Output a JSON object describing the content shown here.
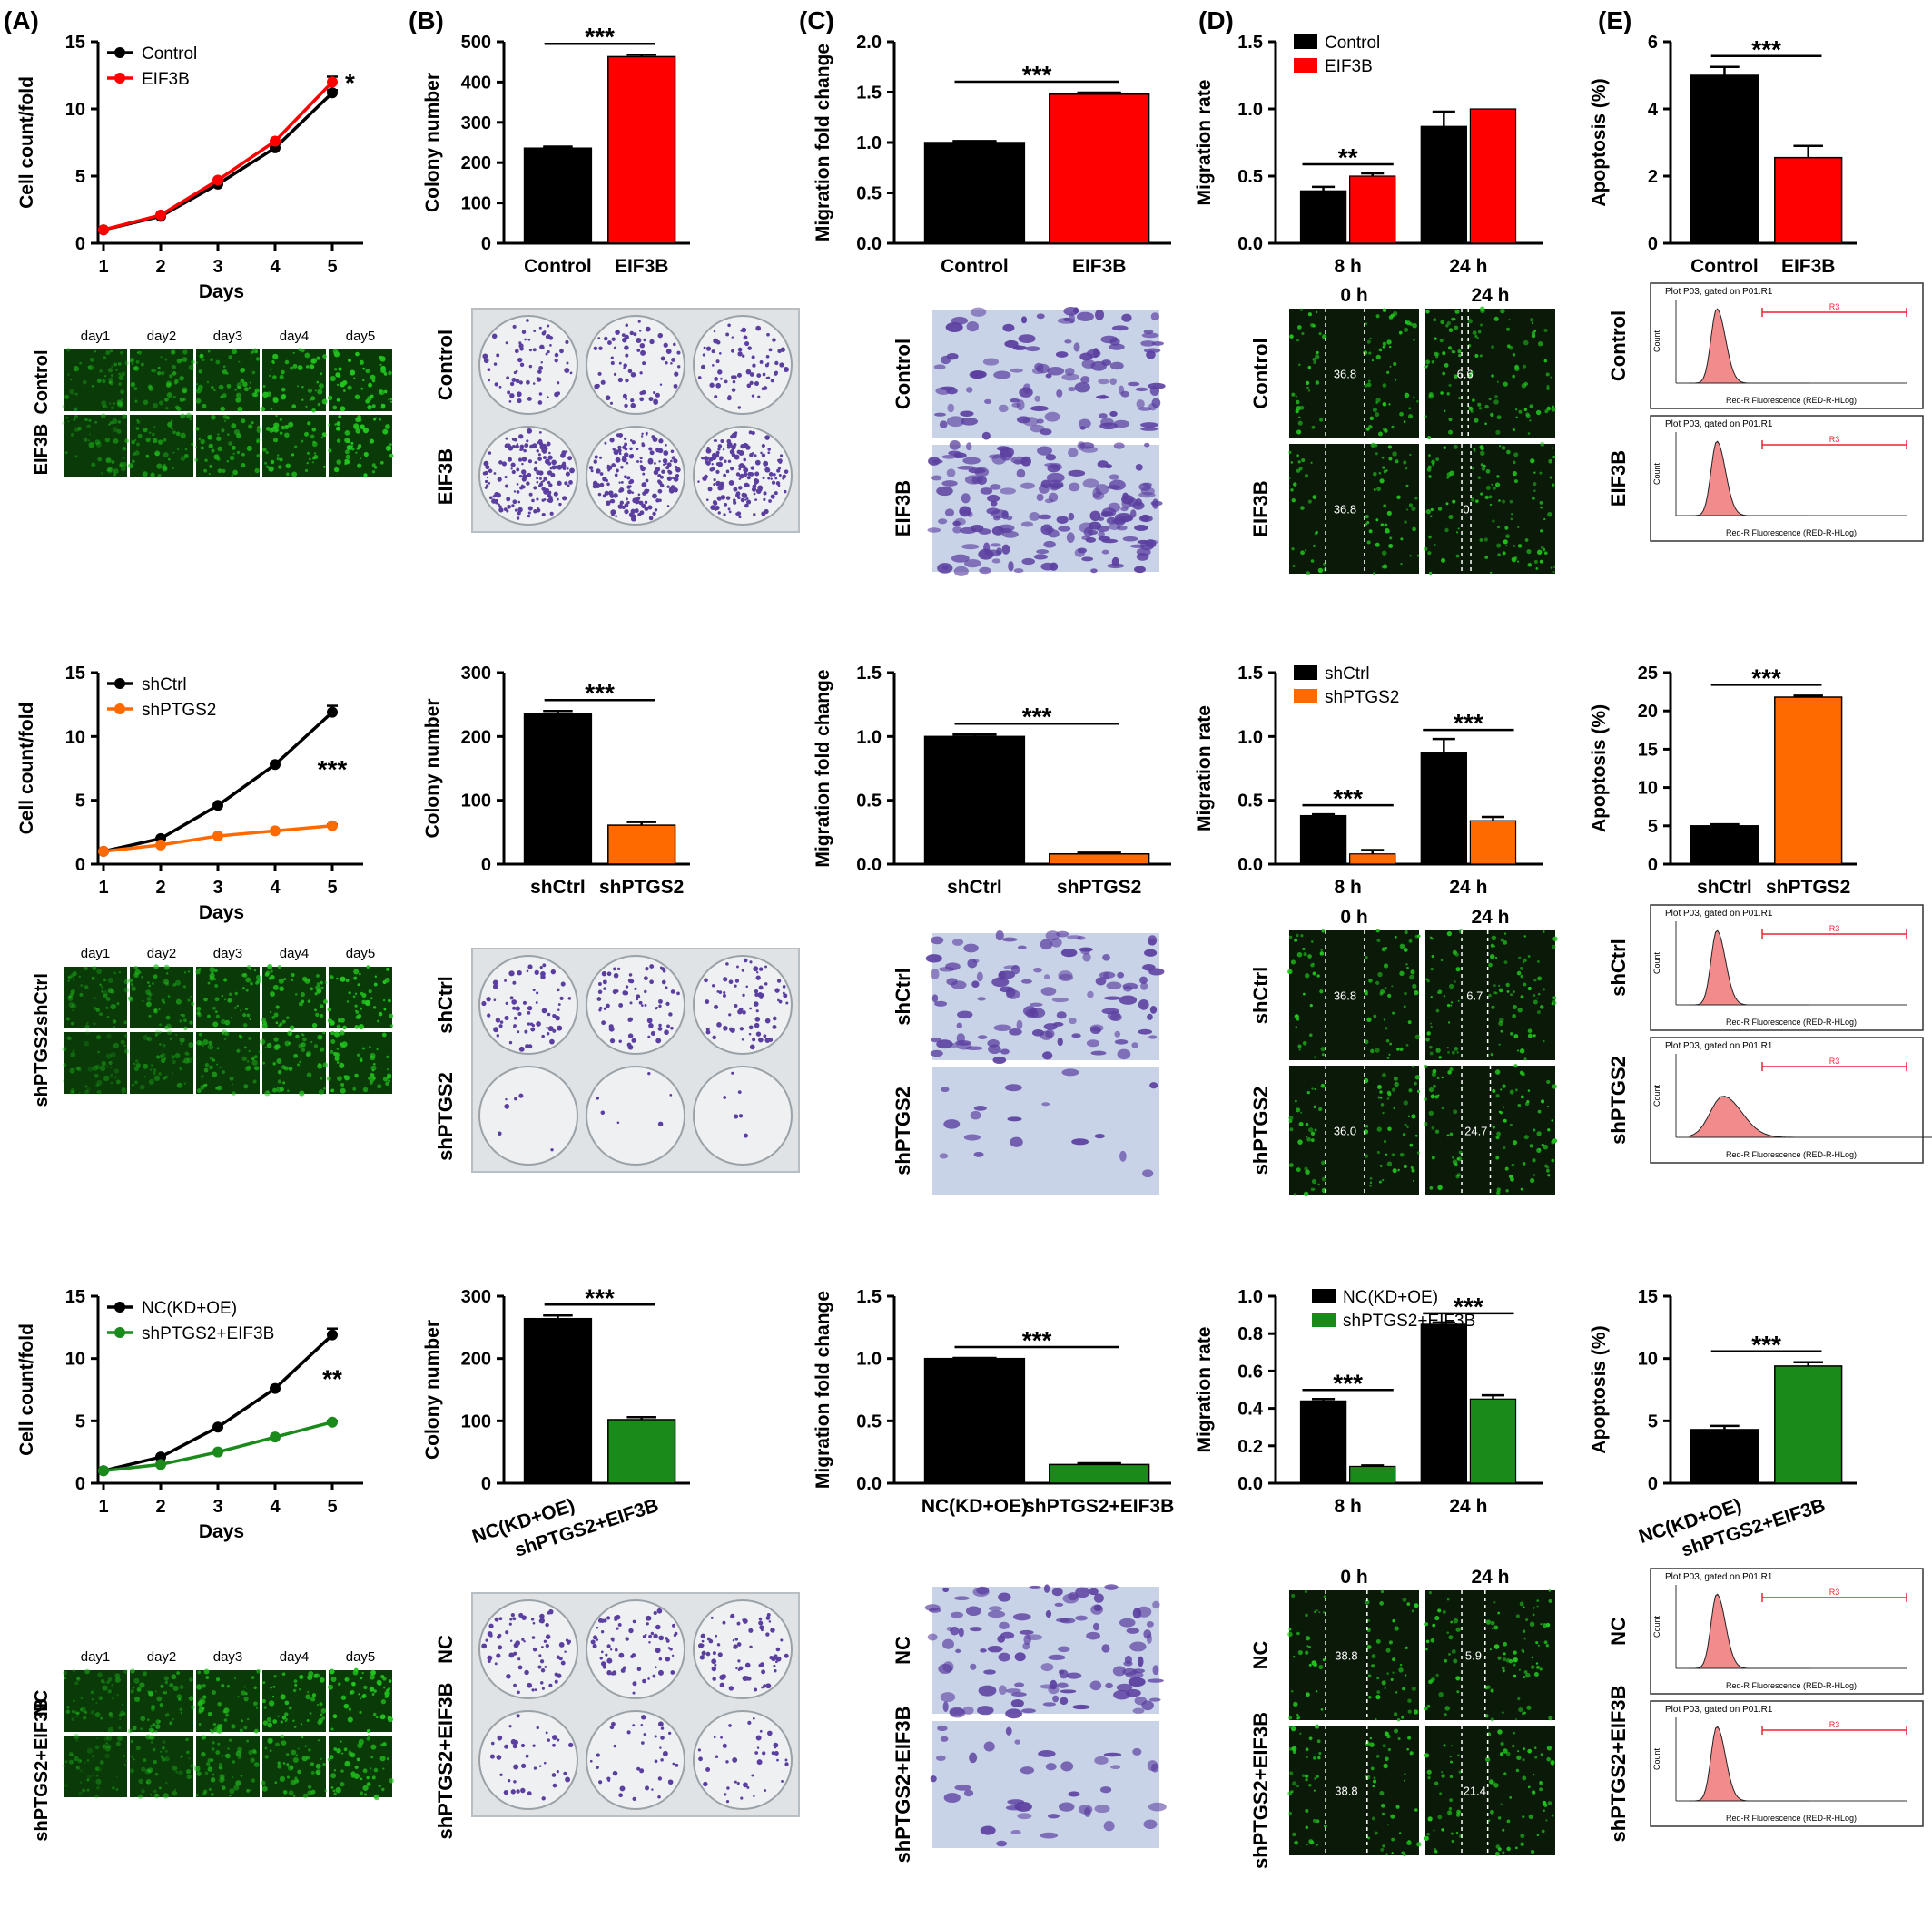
{
  "panel_letters": [
    "(A)",
    "(B)",
    "(C)",
    "(D)",
    "(E)"
  ],
  "rows": [
    {
      "growth": {
        "ylabel": "Cell count/fold",
        "xlabel": "Days",
        "xticks": [
          "1",
          "2",
          "3",
          "4",
          "5"
        ],
        "yticks": [
          "0",
          "5",
          "10",
          "15"
        ],
        "legend": [
          "Control",
          "EIF3B"
        ],
        "sig": "*"
      },
      "growth_images": {
        "day_labels": [
          "day1",
          "day2",
          "day3",
          "day4",
          "day5"
        ],
        "row_labels": [
          "EIF3B",
          "Control"
        ],
        "image_rows": 2
      },
      "colony": {
        "ylabel": "Colony number",
        "yticks": [
          "0",
          "100",
          "200",
          "300",
          "400",
          "500"
        ],
        "categories": [
          "Control",
          "EIF3B"
        ],
        "sig": "***"
      },
      "colony_images": {
        "row_labels": [
          "Control",
          "EIF3B"
        ]
      },
      "migration_fold": {
        "ylabel": "Migration fold change",
        "yticks": [
          "0.0",
          "0.5",
          "1.0",
          "1.5",
          "2.0"
        ],
        "categories": [
          "Control",
          "EIF3B"
        ],
        "sig": "***"
      },
      "transwell_images": {
        "row_labels": [
          "Control",
          "EIF3B"
        ]
      },
      "migration_rate": {
        "ylabel": "Migration rate",
        "yticks": [
          "0.0",
          "0.5",
          "1.0",
          "1.5"
        ],
        "categories": [
          "8 h",
          "24 h"
        ],
        "legend": [
          "Control",
          "EIF3B"
        ],
        "sig": [
          "**",
          ""
        ]
      },
      "wound_images": {
        "time_labels": [
          "0 h",
          "24 h"
        ],
        "row_labels": [
          "Control",
          "EIF3B"
        ],
        "gap_values": [
          [
            "36.8",
            "6.6"
          ],
          [
            "36.8",
            "0"
          ]
        ]
      },
      "apoptosis": {
        "ylabel": "Apoptosis (%)",
        "yticks": [
          "0",
          "2",
          "4",
          "6"
        ],
        "categories": [
          "Control",
          "EIF3B"
        ],
        "sig": "***"
      },
      "flow_images": {
        "row_labels": [
          "Control",
          "EIF3B"
        ]
      }
    },
    {
      "growth": {
        "ylabel": "Cell count/fold",
        "xlabel": "Days",
        "xticks": [
          "1",
          "2",
          "3",
          "4",
          "5"
        ],
        "yticks": [
          "0",
          "5",
          "10",
          "15"
        ],
        "legend": [
          "shCtrl",
          "shPTGS2"
        ],
        "sig": "***"
      },
      "growth_images": {
        "day_labels": [
          "day1",
          "day2",
          "day3",
          "day4",
          "day5"
        ],
        "row_labels": [
          "shPTGS2",
          "shCtrl"
        ],
        "image_rows": 2
      },
      "colony": {
        "ylabel": "Colony number",
        "yticks": [
          "0",
          "100",
          "200",
          "300"
        ],
        "categories": [
          "shCtrl",
          "shPTGS2"
        ],
        "sig": "***"
      },
      "colony_images": {
        "row_labels": [
          "shCtrl",
          "shPTGS2"
        ]
      },
      "migration_fold": {
        "ylabel": "Migration fold change",
        "yticks": [
          "0.0",
          "0.5",
          "1.0",
          "1.5"
        ],
        "categories": [
          "shCtrl",
          "shPTGS2"
        ],
        "sig": "***"
      },
      "transwell_images": {
        "row_labels": [
          "shCtrl",
          "shPTGS2"
        ]
      },
      "migration_rate": {
        "ylabel": "Migration rate",
        "yticks": [
          "0.0",
          "0.5",
          "1.0",
          "1.5"
        ],
        "categories": [
          "8 h",
          "24 h"
        ],
        "legend": [
          "shCtrl",
          "shPTGS2"
        ],
        "sig": [
          "***",
          "***"
        ]
      },
      "wound_images": {
        "time_labels": [
          "0 h",
          "24 h"
        ],
        "row_labels": [
          "shCtrl",
          "shPTGS2"
        ],
        "gap_values": [
          [
            "36.8",
            "6.7"
          ],
          [
            "36.0",
            "24.7"
          ]
        ]
      },
      "apoptosis": {
        "ylabel": "Apoptosis (%)",
        "yticks": [
          "0",
          "5",
          "10",
          "15",
          "20",
          "25"
        ],
        "categories": [
          "shCtrl",
          "shPTGS2"
        ],
        "sig": "***"
      },
      "flow_images": {
        "row_labels": [
          "shCtrl",
          "shPTGS2"
        ]
      }
    },
    {
      "growth": {
        "ylabel": "Cell count/fold",
        "xlabel": "Days",
        "xticks": [
          "1",
          "2",
          "3",
          "4",
          "5"
        ],
        "yticks": [
          "0",
          "5",
          "10",
          "15"
        ],
        "legend": [
          "NC(KD+OE)",
          "shPTGS2+EIF3B"
        ],
        "sig": "**"
      },
      "growth_images": {
        "day_labels": [
          "day1",
          "day2",
          "day3",
          "day4",
          "day5"
        ],
        "row_labels": [
          "shPTGS2+EIF3B",
          "NC"
        ],
        "image_rows": 2
      },
      "colony": {
        "ylabel": "Colony number",
        "yticks": [
          "0",
          "100",
          "200",
          "300"
        ],
        "categories": [
          "NC(KD+OE)",
          "shPTGS2+EIF3B"
        ],
        "sig": "***"
      },
      "colony_images": {
        "row_labels": [
          "NC",
          "shPTGS2+EIF3B"
        ]
      },
      "migration_fold": {
        "ylabel": "Migration fold change",
        "yticks": [
          "0.0",
          "0.5",
          "1.0",
          "1.5"
        ],
        "categories": [
          "NC(KD+OE)",
          "shPTGS2+EIF3B"
        ],
        "sig": "***"
      },
      "transwell_images": {
        "row_labels": [
          "NC",
          "shPTGS2+EIF3B"
        ]
      },
      "migration_rate": {
        "ylabel": "Migration rate",
        "yticks": [
          "0.0",
          "0.2",
          "0.4",
          "0.6",
          "0.8",
          "1.0"
        ],
        "categories": [
          "8 h",
          "24 h"
        ],
        "legend": [
          "NC(KD+OE)",
          "shPTGS2+EIF3B"
        ],
        "sig": [
          "***",
          "***"
        ]
      },
      "wound_images": {
        "time_labels": [
          "0 h",
          "24 h"
        ],
        "row_labels": [
          "NC",
          "shPTGS2+EIF3B"
        ],
        "gap_values": [
          [
            "38.8",
            "5.9"
          ],
          [
            "38.8",
            "21.4"
          ]
        ]
      },
      "apoptosis": {
        "ylabel": "Apoptosis (%)",
        "yticks": [
          "0",
          "5",
          "10",
          "15"
        ],
        "categories": [
          "NC(KD+OE)",
          "shPTGS2+EIF3B"
        ],
        "sig": "***"
      },
      "flow_images": {
        "row_labels": [
          "NC",
          "shPTGS2+EIF3B"
        ]
      }
    }
  ],
  "flow_plot": {
    "title": "Plot P03, gated on P01.R1",
    "xlabel": "Red-R Fluorescence (RED-R-HLog)",
    "ylabel": "Count",
    "gate": "R3"
  },
  "colors": {
    "control": "#000000",
    "eif3b": "#ff0000",
    "shptgs2": "#ff6a00",
    "combo": "#1a8a1a",
    "fluor_green": "#22c41e",
    "crystal_violet": "#5b3fa0",
    "flow_fill": "#f28b8b"
  },
  "chart_data": [
    {
      "type": "line",
      "panel": "(A)",
      "row": 1,
      "title": "",
      "xlabel": "Days",
      "ylabel": "Cell count/fold",
      "ylim": [
        0,
        15
      ],
      "x": [
        1,
        2,
        3,
        4,
        5
      ],
      "series": [
        {
          "name": "Control",
          "values": [
            1.0,
            2.0,
            4.4,
            7.1,
            11.2
          ],
          "error": [
            0,
            0,
            0,
            0,
            0.2
          ]
        },
        {
          "name": "EIF3B",
          "values": [
            1.0,
            2.1,
            4.7,
            7.6,
            12.0
          ],
          "error": [
            0,
            0,
            0,
            0,
            0.4
          ]
        }
      ]
    },
    {
      "type": "bar",
      "panel": "(B)",
      "row": 1,
      "title": "",
      "xlabel": "",
      "ylabel": "Colony number",
      "ylim": [
        0,
        500
      ],
      "categories": [
        "Control",
        "EIF3B"
      ],
      "values": [
        236,
        463
      ],
      "error": [
        4,
        5
      ]
    },
    {
      "type": "bar",
      "panel": "(C)",
      "row": 1,
      "title": "",
      "xlabel": "",
      "ylabel": "Migration fold change",
      "ylim": [
        0,
        2.0
      ],
      "categories": [
        "Control",
        "EIF3B"
      ],
      "values": [
        1.0,
        1.48
      ],
      "error": [
        0.015,
        0.015
      ]
    },
    {
      "type": "bar",
      "panel": "(D)",
      "row": 1,
      "title": "",
      "xlabel": "",
      "ylabel": "Migration rate",
      "ylim": [
        0,
        1.5
      ],
      "categories": [
        "8 h",
        "24 h"
      ],
      "series": [
        {
          "name": "Control",
          "values": [
            0.39,
            0.87
          ],
          "error": [
            0.03,
            0.11
          ]
        },
        {
          "name": "EIF3B",
          "values": [
            0.5,
            1.0
          ],
          "error": [
            0.02,
            0.0
          ]
        }
      ]
    },
    {
      "type": "bar",
      "panel": "(E)",
      "row": 1,
      "title": "",
      "xlabel": "",
      "ylabel": "Apoptosis (%)",
      "ylim": [
        0,
        6
      ],
      "categories": [
        "Control",
        "EIF3B"
      ],
      "values": [
        5.0,
        2.55
      ],
      "error": [
        0.25,
        0.35
      ]
    },
    {
      "type": "line",
      "panel": "(A)",
      "row": 2,
      "title": "",
      "xlabel": "Days",
      "ylabel": "Cell count/fold",
      "ylim": [
        0,
        15
      ],
      "x": [
        1,
        2,
        3,
        4,
        5
      ],
      "series": [
        {
          "name": "shCtrl",
          "values": [
            1.0,
            2.0,
            4.6,
            7.8,
            11.9
          ],
          "error": [
            0,
            0,
            0,
            0,
            0.5
          ]
        },
        {
          "name": "shPTGS2",
          "values": [
            1.0,
            1.5,
            2.2,
            2.6,
            3.0
          ],
          "error": [
            0,
            0,
            0,
            0,
            0.1
          ]
        }
      ]
    },
    {
      "type": "bar",
      "panel": "(B)",
      "row": 2,
      "title": "",
      "xlabel": "",
      "ylabel": "Colony number",
      "ylim": [
        0,
        300
      ],
      "categories": [
        "shCtrl",
        "shPTGS2"
      ],
      "values": [
        236,
        61
      ],
      "error": [
        4,
        5
      ]
    },
    {
      "type": "bar",
      "panel": "(C)",
      "row": 2,
      "title": "",
      "xlabel": "",
      "ylabel": "Migration fold change",
      "ylim": [
        0,
        1.5
      ],
      "categories": [
        "shCtrl",
        "shPTGS2"
      ],
      "values": [
        1.0,
        0.08
      ],
      "error": [
        0.015,
        0.01
      ]
    },
    {
      "type": "bar",
      "panel": "(D)",
      "row": 2,
      "title": "",
      "xlabel": "",
      "ylabel": "Migration rate",
      "ylim": [
        0,
        1.5
      ],
      "categories": [
        "8 h",
        "24 h"
      ],
      "series": [
        {
          "name": "shCtrl",
          "values": [
            0.38,
            0.87
          ],
          "error": [
            0.01,
            0.11
          ]
        },
        {
          "name": "shPTGS2",
          "values": [
            0.08,
            0.34
          ],
          "error": [
            0.03,
            0.03
          ]
        }
      ]
    },
    {
      "type": "bar",
      "panel": "(E)",
      "row": 2,
      "title": "",
      "xlabel": "",
      "ylabel": "Apoptosis (%)",
      "ylim": [
        0,
        25
      ],
      "categories": [
        "shCtrl",
        "shPTGS2"
      ],
      "values": [
        5.0,
        21.8
      ],
      "error": [
        0.2,
        0.2
      ]
    },
    {
      "type": "line",
      "panel": "(A)",
      "row": 3,
      "title": "",
      "xlabel": "Days",
      "ylabel": "Cell count/fold",
      "ylim": [
        0,
        15
      ],
      "x": [
        1,
        2,
        3,
        4,
        5
      ],
      "series": [
        {
          "name": "NC(KD+OE)",
          "values": [
            1.0,
            2.1,
            4.5,
            7.6,
            11.9
          ],
          "error": [
            0,
            0,
            0,
            0,
            0.5
          ]
        },
        {
          "name": "shPTGS2+EIF3B",
          "values": [
            1.0,
            1.5,
            2.5,
            3.7,
            4.9
          ],
          "error": [
            0,
            0,
            0,
            0,
            0.1
          ]
        }
      ]
    },
    {
      "type": "bar",
      "panel": "(B)",
      "row": 3,
      "title": "",
      "xlabel": "",
      "ylabel": "Colony number",
      "ylim": [
        0,
        300
      ],
      "categories": [
        "NC(KD+OE)",
        "shPTGS2+EIF3B"
      ],
      "values": [
        264,
        102
      ],
      "error": [
        5,
        4
      ]
    },
    {
      "type": "bar",
      "panel": "(C)",
      "row": 3,
      "title": "",
      "xlabel": "",
      "ylabel": "Migration fold change",
      "ylim": [
        0,
        1.5
      ],
      "categories": [
        "NC(KD+OE)",
        "shPTGS2+EIF3B"
      ],
      "values": [
        1.0,
        0.15
      ],
      "error": [
        0.005,
        0.01
      ]
    },
    {
      "type": "bar",
      "panel": "(D)",
      "row": 3,
      "title": "",
      "xlabel": "",
      "ylabel": "Migration rate",
      "ylim": [
        0,
        1.0
      ],
      "categories": [
        "8 h",
        "24 h"
      ],
      "series": [
        {
          "name": "NC(KD+OE)",
          "values": [
            0.44,
            0.85
          ],
          "error": [
            0.01,
            0.01
          ]
        },
        {
          "name": "shPTGS2+EIF3B",
          "values": [
            0.09,
            0.45
          ],
          "error": [
            0.005,
            0.02
          ]
        }
      ]
    },
    {
      "type": "bar",
      "panel": "(E)",
      "row": 3,
      "title": "",
      "xlabel": "",
      "ylabel": "Apoptosis (%)",
      "ylim": [
        0,
        15
      ],
      "categories": [
        "NC(KD+OE)",
        "shPTGS2+EIF3B"
      ],
      "values": [
        4.3,
        9.4
      ],
      "error": [
        0.3,
        0.3
      ]
    }
  ]
}
